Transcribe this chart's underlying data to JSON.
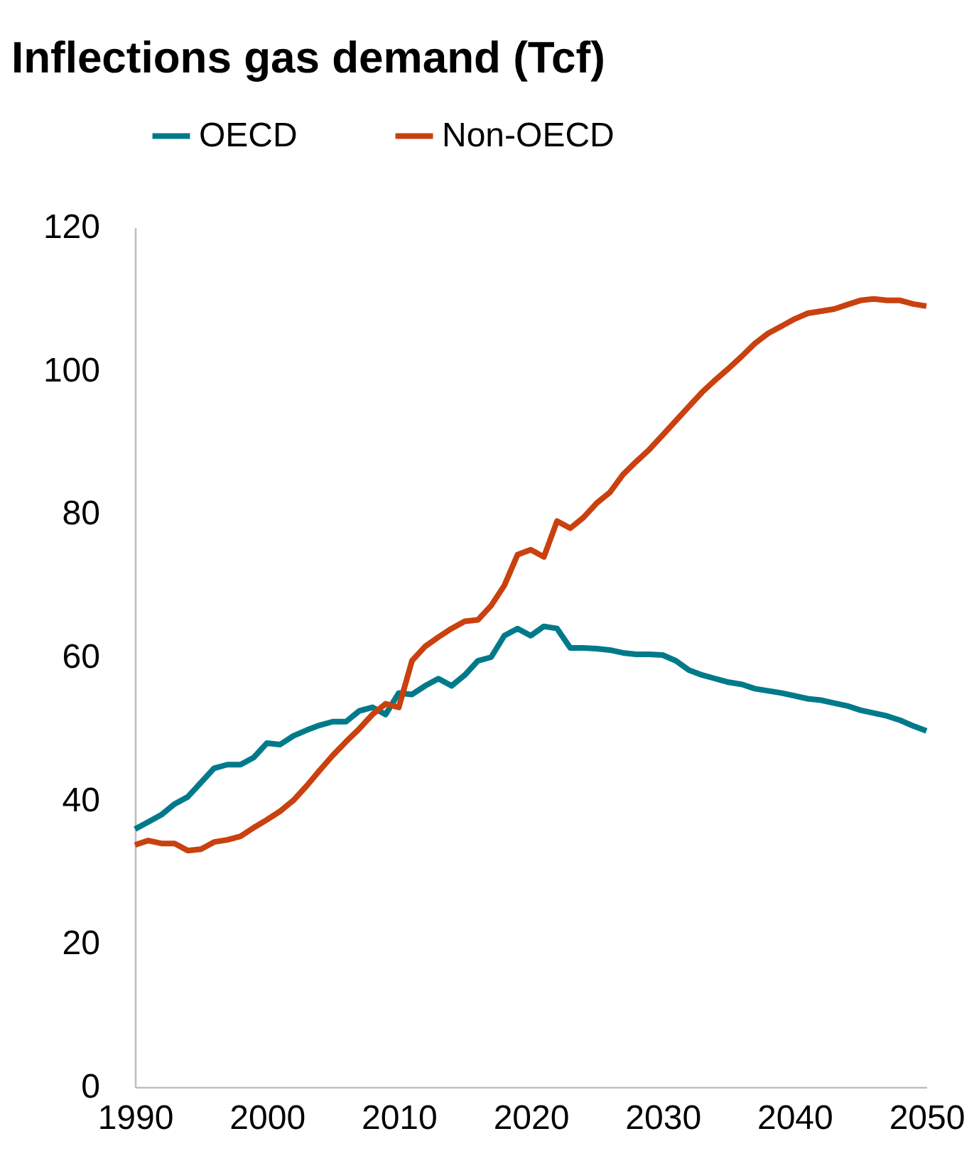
{
  "chart_data": {
    "type": "line",
    "title": "Inflections gas demand (Tcf)",
    "x": [
      1990,
      1991,
      1992,
      1993,
      1994,
      1995,
      1996,
      1997,
      1998,
      1999,
      2000,
      2001,
      2002,
      2003,
      2004,
      2005,
      2006,
      2007,
      2008,
      2009,
      2010,
      2011,
      2012,
      2013,
      2014,
      2015,
      2016,
      2017,
      2018,
      2019,
      2020,
      2021,
      2022,
      2023,
      2024,
      2025,
      2026,
      2027,
      2028,
      2029,
      2030,
      2031,
      2032,
      2033,
      2034,
      2035,
      2036,
      2037,
      2038,
      2039,
      2040,
      2041,
      2042,
      2043,
      2044,
      2045,
      2046,
      2047,
      2048,
      2049,
      2050
    ],
    "series": [
      {
        "name": "OECD",
        "color": "#007a8a",
        "values": [
          36,
          37,
          38,
          39.5,
          40.5,
          42.5,
          44.5,
          45,
          45,
          46,
          48,
          47.8,
          49,
          49.8,
          50.5,
          51,
          51,
          52.5,
          53,
          52,
          55,
          54.8,
          56,
          57,
          56,
          57.5,
          59.5,
          60,
          63,
          64,
          63,
          64.3,
          64,
          61.3,
          61.3,
          61.2,
          61,
          60.6,
          60.4,
          60.4,
          60.3,
          59.5,
          58.2,
          57.5,
          57,
          56.5,
          56.2,
          55.6,
          55.3,
          55,
          54.6,
          54.2,
          54,
          53.6,
          53.2,
          52.6,
          52.2,
          51.8,
          51.2,
          50.4,
          49.7
        ]
      },
      {
        "name": "Non-OECD",
        "color": "#c9410e",
        "values": [
          33.8,
          34.4,
          34,
          34,
          33,
          33.2,
          34.2,
          34.5,
          35,
          36.2,
          37.3,
          38.5,
          40,
          42,
          44.2,
          46.3,
          48.2,
          50,
          52,
          53.5,
          53,
          59.5,
          61.5,
          62.8,
          64,
          65,
          65.2,
          67.2,
          70,
          74.3,
          75,
          74,
          79,
          78,
          79.5,
          81.5,
          83,
          85.5,
          87.3,
          89,
          91,
          93,
          95,
          97,
          98.7,
          100.3,
          102,
          103.8,
          105.2,
          106.2,
          107.2,
          108,
          108.3,
          108.6,
          109.2,
          109.8,
          110,
          109.8,
          109.8,
          109.3,
          109
        ]
      }
    ],
    "xlim": [
      1990,
      2050
    ],
    "xticks": [
      1990,
      2000,
      2010,
      2020,
      2030,
      2040,
      2050
    ],
    "ylim": [
      0,
      120
    ],
    "yticks": [
      0,
      20,
      40,
      60,
      80,
      100,
      120
    ],
    "legend": "top",
    "grid": false,
    "line_style": "solid",
    "marker": "none"
  }
}
